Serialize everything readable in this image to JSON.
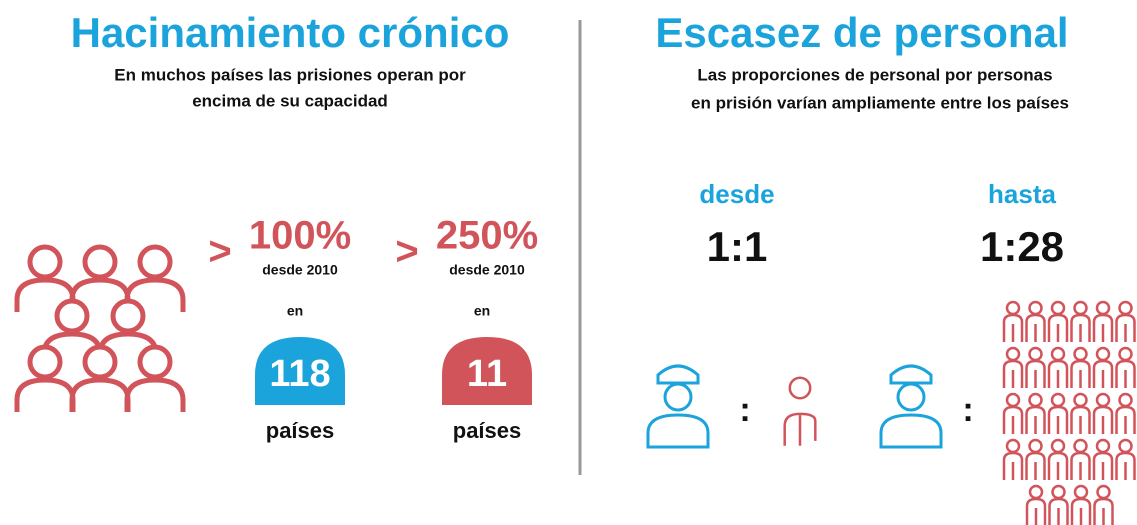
{
  "left": {
    "title": "Hacinamiento crónico",
    "subtitle": [
      "En muchos países las prisiones operan por",
      "encima de su capacidad"
    ],
    "stats": [
      {
        "symbol": ">",
        "value": "100%",
        "since": "desde 2010",
        "in": "en",
        "count": "118",
        "unit": "países"
      },
      {
        "symbol": ">",
        "value": "250%",
        "since": "desde 2010",
        "in": "en",
        "count": "11",
        "unit": "países"
      }
    ]
  },
  "right": {
    "title": "Escasez de personal",
    "subtitle": [
      "Las proporciones de personal por personas",
      "en prisión varían ampliamente entre los países"
    ],
    "ratios": [
      {
        "label": "desde",
        "ratio": "1:1",
        "separator": ":"
      },
      {
        "label": "hasta",
        "ratio": "1:28",
        "separator": ":"
      }
    ]
  }
}
